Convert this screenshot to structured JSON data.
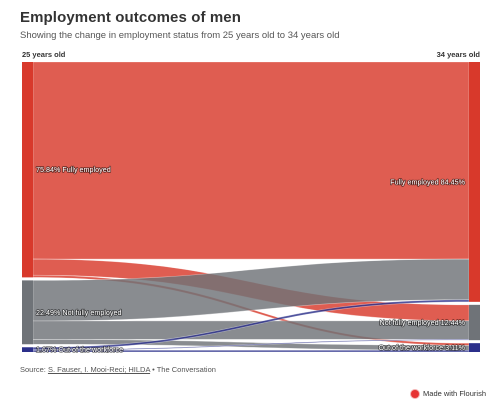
{
  "title": "Employment outcomes of men",
  "subtitle": "Showing the change in employment status from 25 years old to 34 years old",
  "source": {
    "prefix": "Source: ",
    "link": "S. Fauser, I. Mooi-Reci; HILDA",
    "suffix": " • The Conversation"
  },
  "credit": {
    "label": "Made with Flourish",
    "icon": "flourish-logo-icon"
  },
  "chart_data": {
    "type": "sankey",
    "stages": [
      "25 years old",
      "34 years old"
    ],
    "nodes_left": [
      {
        "id": "fe25",
        "label": "75.84% Fully employed",
        "value": 75.84,
        "color": "#d8392b"
      },
      {
        "id": "nfe25",
        "label": "22.49% Not fully employed",
        "value": 22.49,
        "color": "#6f7378"
      },
      {
        "id": "ow25",
        "label": "1.67% Out of the workforce",
        "value": 1.67,
        "color": "#2b2f8a"
      }
    ],
    "nodes_right": [
      {
        "id": "fe34",
        "label": "Fully employed 84.45%",
        "value": 84.45,
        "color": "#d8392b"
      },
      {
        "id": "nfe34",
        "label": "Not fully employed 12.44%",
        "value": 12.44,
        "color": "#6f7378"
      },
      {
        "id": "ow34",
        "label": "Out of the workforce 3.11%",
        "value": 3.11,
        "color": "#2b2f8a"
      }
    ],
    "links": [
      {
        "from": "fe25",
        "to": "fe34",
        "value": 69.4
      },
      {
        "from": "fe25",
        "to": "nfe34",
        "value": 5.64
      },
      {
        "from": "fe25",
        "to": "ow34",
        "value": 0.8
      },
      {
        "from": "nfe25",
        "to": "fe34",
        "value": 14.3
      },
      {
        "from": "nfe25",
        "to": "nfe34",
        "value": 6.5
      },
      {
        "from": "nfe25",
        "to": "ow34",
        "value": 1.69
      },
      {
        "from": "ow25",
        "to": "fe34",
        "value": 0.75
      },
      {
        "from": "ow25",
        "to": "nfe34",
        "value": 0.3
      },
      {
        "from": "ow25",
        "to": "ow34",
        "value": 0.62
      }
    ]
  }
}
